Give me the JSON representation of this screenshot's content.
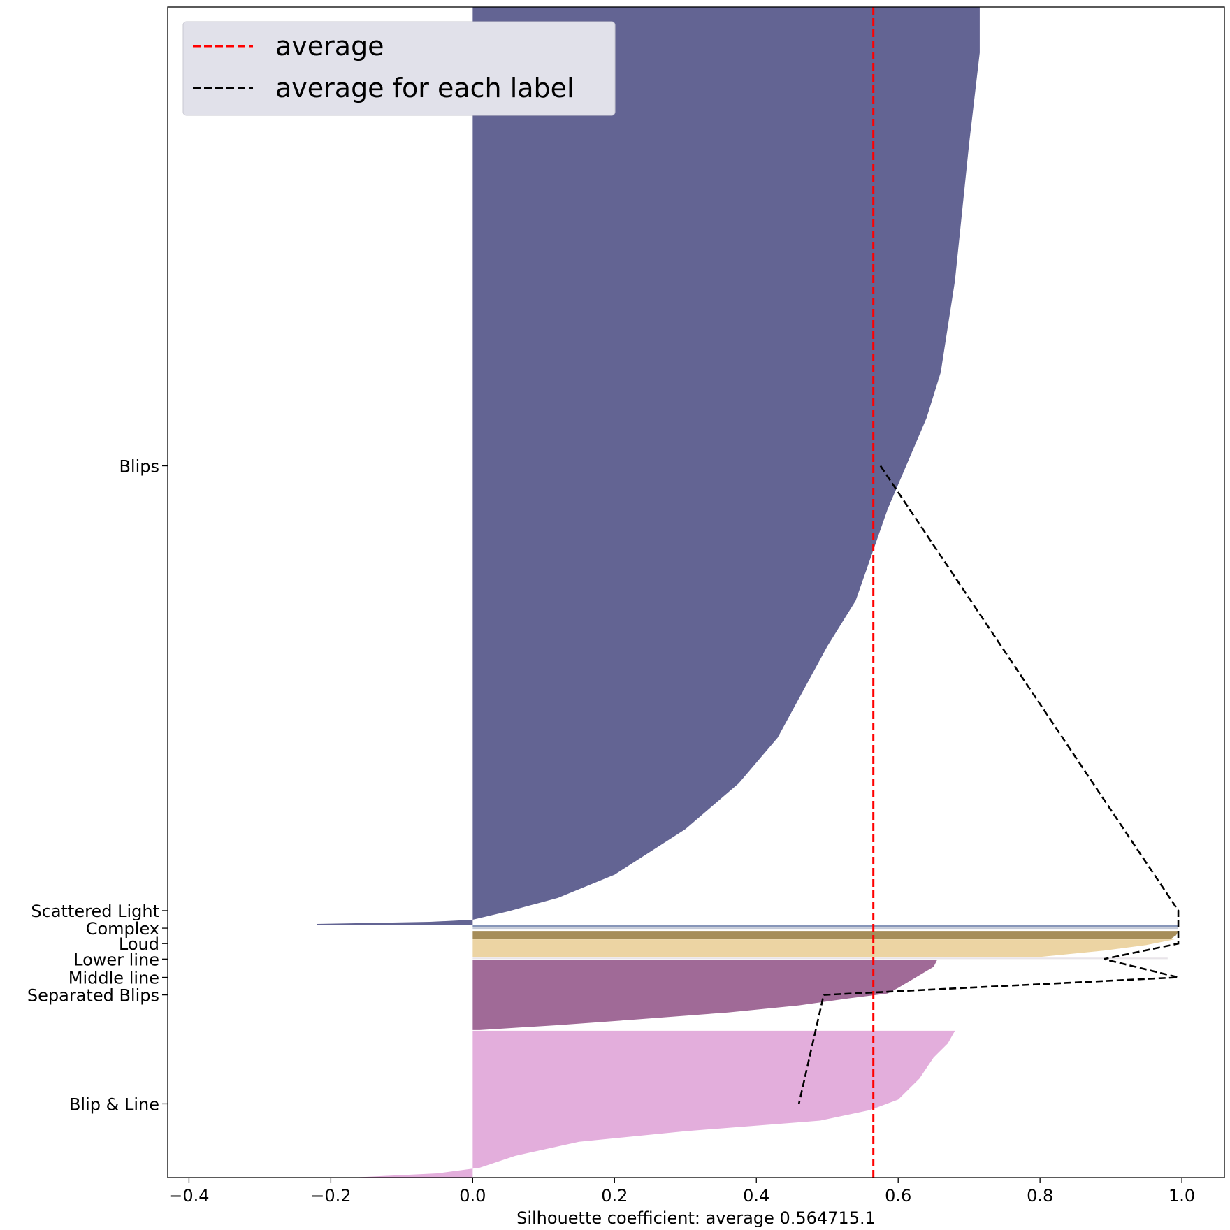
{
  "chart_data": {
    "type": "silhouette",
    "xlabel": "Silhouette coefficient: average 0.564715.1",
    "ylabel": "",
    "xlim": [
      -0.43,
      1.06
    ],
    "x_ticks": [
      "−0.4",
      "−0.2",
      "0.0",
      "0.2",
      "0.4",
      "0.6",
      "0.8",
      "1.0"
    ],
    "x_tick_values": [
      -0.4,
      -0.2,
      0.0,
      0.2,
      0.4,
      0.6,
      0.8,
      1.0
    ],
    "average": 0.565,
    "legend": {
      "placement": "top-left",
      "entries": [
        {
          "label": "average",
          "color": "#ff0000",
          "style": "dashed"
        },
        {
          "label": "average for each label",
          "color": "#000000",
          "style": "dashed"
        }
      ]
    },
    "clusters": [
      {
        "label": "Blips",
        "color": "#636493",
        "y_start": 0,
        "y_end": 1306,
        "profile": [
          [
            0,
            0.715
          ],
          [
            65,
            0.715
          ],
          [
            195,
            0.7
          ],
          [
            390,
            0.68
          ],
          [
            520,
            0.66
          ],
          [
            585,
            0.64
          ],
          [
            715,
            0.585
          ],
          [
            845,
            0.54
          ],
          [
            910,
            0.5
          ],
          [
            1040,
            0.43
          ],
          [
            1105,
            0.375
          ],
          [
            1170,
            0.3
          ],
          [
            1235,
            0.2
          ],
          [
            1268,
            0.12
          ],
          [
            1287,
            0.05
          ],
          [
            1299,
            0.0
          ],
          [
            1302,
            -0.06
          ],
          [
            1305,
            -0.22
          ]
        ]
      },
      {
        "label": "Scattered Light",
        "color": "#8796b9",
        "y_start": 1307,
        "y_end": 1309,
        "profile": [
          [
            0,
            0.995
          ],
          [
            2,
            0.995
          ]
        ]
      },
      {
        "label": "Complex",
        "color": "#c2c8d6",
        "y_start": 1310,
        "y_end": 1313,
        "profile": [
          [
            0,
            0.995
          ],
          [
            3,
            0.995
          ]
        ]
      },
      {
        "label": "Loud",
        "color": "#a68d59",
        "y_start": 1315,
        "y_end": 1326,
        "profile": [
          [
            0,
            0.995
          ],
          [
            6,
            0.992
          ],
          [
            11,
            0.985
          ]
        ]
      },
      {
        "label": "Lower line",
        "color": "#ecd4a3",
        "y_start": 1327,
        "y_end": 1352,
        "profile": [
          [
            0,
            0.99
          ],
          [
            8,
            0.95
          ],
          [
            16,
            0.89
          ],
          [
            21,
            0.84
          ],
          [
            25,
            0.8
          ]
        ]
      },
      {
        "label": "Middle line",
        "color": "#e8e4e9",
        "y_start": 1353,
        "y_end": 1355,
        "profile": [
          [
            0,
            0.98
          ],
          [
            2,
            0.98
          ]
        ]
      },
      {
        "label": "Separated Blips",
        "color": "#a06a97",
        "y_start": 1356,
        "y_end": 1456,
        "profile": [
          [
            0,
            0.655
          ],
          [
            10,
            0.65
          ],
          [
            25,
            0.625
          ],
          [
            40,
            0.6
          ],
          [
            48,
            0.585
          ],
          [
            55,
            0.53
          ],
          [
            65,
            0.46
          ],
          [
            75,
            0.36
          ],
          [
            85,
            0.23
          ],
          [
            93,
            0.12
          ],
          [
            100,
            0.01
          ]
        ]
      },
      {
        "label": "Blip & Line",
        "color": "#e3aedc",
        "y_start": 1457,
        "y_end": 1666,
        "profile": [
          [
            0,
            0.68
          ],
          [
            18,
            0.67
          ],
          [
            38,
            0.65
          ],
          [
            68,
            0.63
          ],
          [
            98,
            0.6
          ],
          [
            113,
            0.56
          ],
          [
            128,
            0.49
          ],
          [
            143,
            0.3
          ],
          [
            158,
            0.15
          ],
          [
            178,
            0.06
          ],
          [
            195,
            0.01
          ],
          [
            203,
            -0.05
          ],
          [
            209,
            -0.17
          ],
          [
            210,
            -0.25
          ]
        ]
      }
    ],
    "label_averages": [
      {
        "label": "Blips",
        "value": 0.575
      },
      {
        "label": "Scattered Light",
        "value": 0.995
      },
      {
        "label": "Complex",
        "value": 0.995
      },
      {
        "label": "Loud",
        "value": 0.995
      },
      {
        "label": "Lower line",
        "value": 0.89
      },
      {
        "label": "Middle line",
        "value": 0.995
      },
      {
        "label": "Separated Blips",
        "value": 0.495
      },
      {
        "label": "Blip & Line",
        "value": 0.46
      }
    ],
    "y_ticks": [
      {
        "label": "Blips",
        "pos": 653
      },
      {
        "label": "Scattered Light",
        "pos": 1286
      },
      {
        "label": "Complex",
        "pos": 1311
      },
      {
        "label": "Loud",
        "pos": 1333
      },
      {
        "label": "Lower line",
        "pos": 1355
      },
      {
        "label": "Middle line",
        "pos": 1381
      },
      {
        "label": "Separated Blips",
        "pos": 1406
      },
      {
        "label": "Blip & Line",
        "pos": 1561
      }
    ],
    "ylim": [
      0,
      1666
    ]
  }
}
